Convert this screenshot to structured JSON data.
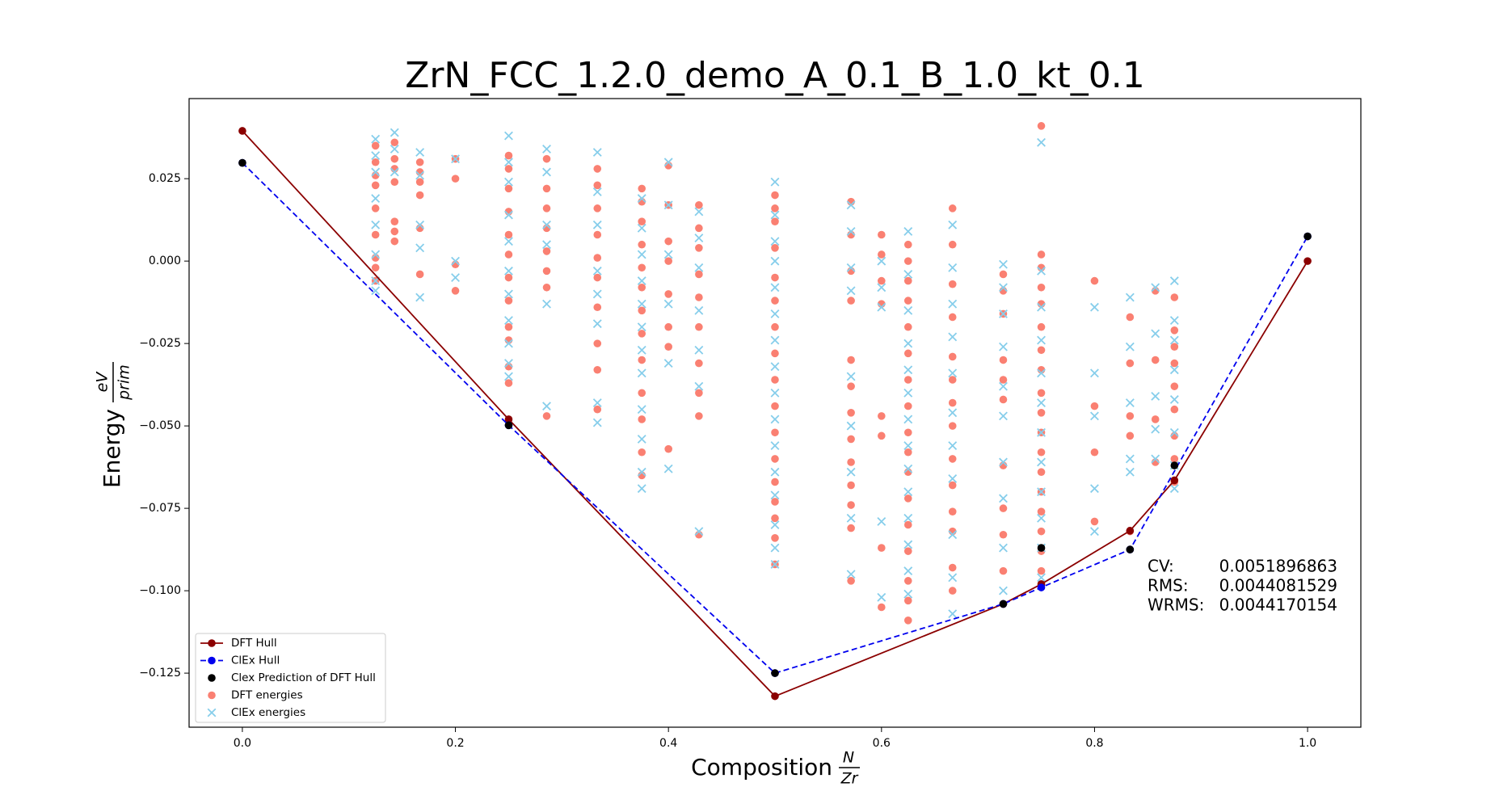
{
  "chart_data": {
    "type": "scatter",
    "title": "ZrN_FCC_1.2.0_demo_A_0.1_B_1.0_kt_0.1",
    "xlabel": {
      "text": "Composition",
      "num": "N",
      "den": "Zr"
    },
    "ylabel": {
      "text": "Energy",
      "num": "eV",
      "den": "prim"
    },
    "xlim": [
      -0.05,
      1.05
    ],
    "ylim": [
      -0.1414,
      0.0493
    ],
    "xticks": [
      {
        "value": 0,
        "label": "0.0"
      },
      0.2,
      0.4,
      0.6,
      0.8,
      {
        "value": 1,
        "label": "1.0"
      }
    ],
    "yticks": [
      {
        "value": -0.125,
        "label": "−0.125"
      },
      {
        "value": -0.1,
        "label": "−0.100"
      },
      {
        "value": -0.075,
        "label": "−0.075"
      },
      {
        "value": -0.05,
        "label": "−0.050"
      },
      {
        "value": -0.025,
        "label": "−0.025"
      },
      {
        "value": 0,
        "label": "0.000"
      },
      0.025
    ],
    "grid": false,
    "legend": "lower left",
    "metrics": [
      {
        "label": "CV:",
        "value": 0.0051896863
      },
      {
        "label": "RMS:",
        "value": 0.0044081529
      },
      {
        "label": "WRMS:",
        "value": 0.0044170154
      }
    ],
    "series": [
      {
        "name": "DFT Hull",
        "color": "#8b0000",
        "marker": "circle",
        "linestyle": "solid",
        "x": [
          0,
          0.25,
          0.5,
          0.7143,
          0.75,
          0.8333,
          0.875,
          1.0
        ],
        "values": [
          0.0395,
          -0.048,
          -0.132,
          -0.104,
          -0.098,
          -0.0818,
          -0.0665,
          0.0
        ]
      },
      {
        "name": "ClEx Hull",
        "color": "#0000ee",
        "marker": "circle",
        "linestyle": "dashed",
        "x": [
          0,
          0.25,
          0.5,
          0.7143,
          0.75,
          0.8333,
          1.0
        ],
        "values": [
          0.0298,
          -0.0498,
          -0.125,
          -0.104,
          -0.099,
          -0.0875,
          0.0075
        ]
      },
      {
        "name": "Clex Prediction of DFT Hull",
        "color": "#000000",
        "marker": "circle",
        "x": [
          0,
          0.25,
          0.5,
          0.7143,
          0.75,
          0.8333,
          0.875,
          1.0
        ],
        "values": [
          0.0298,
          -0.0498,
          -0.125,
          -0.104,
          -0.087,
          -0.0875,
          -0.062,
          0.0075
        ]
      },
      {
        "name": "DFT energies",
        "color": "#fa8072",
        "marker": "circle",
        "x": [
          0.125,
          0.125,
          0.125,
          0.125,
          0.125,
          0.125,
          0.125,
          0.125,
          0.125,
          0.1429,
          0.1429,
          0.1429,
          0.1429,
          0.1429,
          0.1429,
          0.1429,
          0.1667,
          0.1667,
          0.1667,
          0.1667,
          0.1667,
          0.1667,
          0.2,
          0.2,
          0.2,
          0.2,
          0.25,
          0.25,
          0.25,
          0.25,
          0.25,
          0.25,
          0.25,
          0.25,
          0.25,
          0.25,
          0.25,
          0.25,
          0.2857,
          0.2857,
          0.2857,
          0.2857,
          0.2857,
          0.2857,
          0.2857,
          0.2857,
          0.3333,
          0.3333,
          0.3333,
          0.3333,
          0.3333,
          0.3333,
          0.3333,
          0.3333,
          0.3333,
          0.3333,
          0.375,
          0.375,
          0.375,
          0.375,
          0.375,
          0.375,
          0.375,
          0.375,
          0.375,
          0.375,
          0.375,
          0.375,
          0.375,
          0.4,
          0.4,
          0.4,
          0.4,
          0.4,
          0.4,
          0.4,
          0.4,
          0.4286,
          0.4286,
          0.4286,
          0.4286,
          0.4286,
          0.4286,
          0.4286,
          0.4286,
          0.4286,
          0.4286,
          0.5,
          0.5,
          0.5,
          0.5,
          0.5,
          0.5,
          0.5,
          0.5,
          0.5,
          0.5,
          0.5,
          0.5,
          0.5,
          0.5,
          0.5,
          0.5,
          0.5,
          0.5714,
          0.5714,
          0.5714,
          0.5714,
          0.5714,
          0.5714,
          0.5714,
          0.5714,
          0.5714,
          0.5714,
          0.5714,
          0.5714,
          0.5714,
          0.6,
          0.6,
          0.6,
          0.6,
          0.6,
          0.6,
          0.6,
          0.6,
          0.625,
          0.625,
          0.625,
          0.625,
          0.625,
          0.625,
          0.625,
          0.625,
          0.625,
          0.625,
          0.625,
          0.625,
          0.625,
          0.625,
          0.625,
          0.625,
          0.625,
          0.6667,
          0.6667,
          0.6667,
          0.6667,
          0.6667,
          0.6667,
          0.6667,
          0.6667,
          0.6667,
          0.6667,
          0.6667,
          0.6667,
          0.6667,
          0.6667,
          0.7143,
          0.7143,
          0.7143,
          0.7143,
          0.7143,
          0.7143,
          0.7143,
          0.7143,
          0.7143,
          0.7143,
          0.7143,
          0.75,
          0.75,
          0.75,
          0.75,
          0.75,
          0.75,
          0.75,
          0.75,
          0.75,
          0.75,
          0.75,
          0.75,
          0.75,
          0.75,
          0.75,
          0.75,
          0.75,
          0.75,
          0.75,
          0.8,
          0.8,
          0.8,
          0.8,
          0.8333,
          0.8333,
          0.8333,
          0.8333,
          0.8333,
          0.8571,
          0.8571,
          0.8571,
          0.8571,
          0.875,
          0.875,
          0.875,
          0.875,
          0.875,
          0.875,
          0.875,
          0.875,
          0.875
        ],
        "values": [
          0.035,
          0.03,
          0.026,
          0.023,
          0.016,
          0.008,
          0.001,
          -0.002,
          -0.006,
          0.036,
          0.031,
          0.028,
          0.024,
          0.012,
          0.009,
          0.006,
          0.03,
          0.027,
          0.024,
          0.02,
          0.01,
          -0.004,
          0.031,
          0.025,
          -0.001,
          -0.009,
          0.032,
          0.028,
          0.022,
          0.015,
          0.008,
          0.002,
          -0.005,
          -0.012,
          -0.02,
          -0.024,
          -0.032,
          -0.037,
          0.031,
          0.022,
          0.016,
          0.01,
          0.003,
          -0.003,
          -0.008,
          -0.047,
          0.028,
          0.023,
          0.016,
          0.008,
          0.001,
          -0.005,
          -0.014,
          -0.025,
          -0.033,
          -0.045,
          0.022,
          0.018,
          0.012,
          0.005,
          -0.002,
          -0.008,
          -0.015,
          -0.022,
          -0.03,
          -0.04,
          -0.048,
          -0.058,
          -0.065,
          0.029,
          0.017,
          0.006,
          0.0,
          -0.01,
          -0.02,
          -0.026,
          -0.057,
          0.017,
          0.01,
          0.004,
          -0.004,
          -0.011,
          -0.02,
          -0.031,
          -0.04,
          -0.047,
          -0.083,
          0.02,
          0.016,
          0.012,
          0.004,
          -0.005,
          -0.012,
          -0.02,
          -0.028,
          -0.036,
          -0.044,
          -0.052,
          -0.06,
          -0.067,
          -0.073,
          -0.078,
          -0.084,
          -0.092,
          0.018,
          0.008,
          -0.003,
          -0.012,
          -0.03,
          -0.038,
          -0.046,
          -0.054,
          -0.061,
          -0.068,
          -0.074,
          -0.081,
          -0.097,
          0.008,
          0.002,
          -0.006,
          -0.013,
          -0.047,
          -0.053,
          -0.087,
          -0.105,
          0.005,
          0.0,
          -0.006,
          -0.012,
          -0.02,
          -0.028,
          -0.036,
          -0.044,
          -0.052,
          -0.058,
          -0.064,
          -0.072,
          -0.08,
          -0.088,
          -0.097,
          -0.103,
          -0.109,
          0.016,
          0.005,
          -0.007,
          -0.017,
          -0.029,
          -0.036,
          -0.043,
          -0.05,
          -0.06,
          -0.068,
          -0.076,
          -0.082,
          -0.093,
          -0.1,
          -0.004,
          -0.009,
          -0.016,
          -0.03,
          -0.036,
          -0.042,
          -0.062,
          -0.075,
          -0.083,
          -0.094,
          -0.104,
          0.041,
          0.002,
          -0.002,
          -0.008,
          -0.013,
          -0.02,
          -0.027,
          -0.033,
          -0.04,
          -0.046,
          -0.052,
          -0.058,
          -0.064,
          -0.07,
          -0.076,
          -0.082,
          -0.088,
          -0.094,
          -0.098,
          -0.006,
          -0.044,
          -0.058,
          -0.079,
          -0.017,
          -0.031,
          -0.047,
          -0.053,
          -0.082,
          -0.009,
          -0.03,
          -0.048,
          -0.061,
          -0.011,
          -0.021,
          -0.026,
          -0.031,
          -0.038,
          -0.045,
          -0.053,
          -0.06,
          -0.067
        ]
      },
      {
        "name": "ClEx energies",
        "color": "#87ceeb",
        "marker": "x",
        "x": [
          0.125,
          0.125,
          0.125,
          0.125,
          0.125,
          0.125,
          0.125,
          0.125,
          0.1429,
          0.1429,
          0.1429,
          0.1667,
          0.1667,
          0.1667,
          0.1667,
          0.1667,
          0.2,
          0.2,
          0.2,
          0.25,
          0.25,
          0.25,
          0.25,
          0.25,
          0.25,
          0.25,
          0.25,
          0.25,
          0.25,
          0.25,
          0.2857,
          0.2857,
          0.2857,
          0.2857,
          0.2857,
          0.2857,
          0.3333,
          0.3333,
          0.3333,
          0.3333,
          0.3333,
          0.3333,
          0.3333,
          0.3333,
          0.375,
          0.375,
          0.375,
          0.375,
          0.375,
          0.375,
          0.375,
          0.375,
          0.375,
          0.375,
          0.375,
          0.375,
          0.4,
          0.4,
          0.4,
          0.4,
          0.4,
          0.4,
          0.4286,
          0.4286,
          0.4286,
          0.4286,
          0.4286,
          0.4286,
          0.4286,
          0.5,
          0.5,
          0.5,
          0.5,
          0.5,
          0.5,
          0.5,
          0.5,
          0.5,
          0.5,
          0.5,
          0.5,
          0.5,
          0.5,
          0.5,
          0.5,
          0.5714,
          0.5714,
          0.5714,
          0.5714,
          0.5714,
          0.5714,
          0.5714,
          0.5714,
          0.5714,
          0.6,
          0.6,
          0.6,
          0.6,
          0.6,
          0.625,
          0.625,
          0.625,
          0.625,
          0.625,
          0.625,
          0.625,
          0.625,
          0.625,
          0.625,
          0.625,
          0.625,
          0.625,
          0.625,
          0.6667,
          0.6667,
          0.6667,
          0.6667,
          0.6667,
          0.6667,
          0.6667,
          0.6667,
          0.6667,
          0.6667,
          0.6667,
          0.7143,
          0.7143,
          0.7143,
          0.7143,
          0.7143,
          0.7143,
          0.7143,
          0.7143,
          0.7143,
          0.7143,
          0.75,
          0.75,
          0.75,
          0.75,
          0.75,
          0.75,
          0.75,
          0.75,
          0.75,
          0.75,
          0.75,
          0.75,
          0.8,
          0.8,
          0.8,
          0.8,
          0.8,
          0.8333,
          0.8333,
          0.8333,
          0.8333,
          0.8333,
          0.8571,
          0.8571,
          0.8571,
          0.8571,
          0.8571,
          0.875,
          0.875,
          0.875,
          0.875,
          0.875,
          0.875,
          0.875,
          0.875
        ],
        "values": [
          0.037,
          0.032,
          0.027,
          0.019,
          0.011,
          0.002,
          -0.006,
          -0.009,
          0.039,
          0.034,
          0.027,
          0.033,
          0.026,
          0.011,
          0.004,
          -0.011,
          0.031,
          0.0,
          -0.005,
          0.038,
          0.03,
          0.024,
          0.014,
          0.006,
          -0.003,
          -0.01,
          -0.018,
          -0.025,
          -0.031,
          -0.035,
          0.034,
          0.027,
          0.011,
          0.005,
          -0.013,
          -0.044,
          0.033,
          0.021,
          0.011,
          -0.003,
          -0.01,
          -0.019,
          -0.043,
          -0.049,
          0.019,
          0.01,
          0.002,
          -0.006,
          -0.013,
          -0.02,
          -0.027,
          -0.034,
          -0.045,
          -0.054,
          -0.064,
          -0.069,
          0.03,
          0.017,
          0.002,
          -0.013,
          -0.031,
          -0.063,
          0.015,
          0.007,
          -0.002,
          -0.015,
          -0.027,
          -0.038,
          -0.082,
          0.024,
          0.014,
          0.006,
          0.0,
          -0.008,
          -0.016,
          -0.024,
          -0.032,
          -0.04,
          -0.048,
          -0.056,
          -0.064,
          -0.071,
          -0.08,
          -0.087,
          -0.092,
          0.017,
          0.009,
          -0.002,
          -0.009,
          -0.035,
          -0.05,
          -0.064,
          -0.078,
          -0.095,
          0.0,
          -0.008,
          -0.014,
          -0.079,
          -0.102,
          0.009,
          -0.004,
          -0.015,
          -0.025,
          -0.033,
          -0.04,
          -0.048,
          -0.056,
          -0.063,
          -0.07,
          -0.078,
          -0.086,
          -0.094,
          -0.101,
          0.011,
          -0.002,
          -0.013,
          -0.023,
          -0.034,
          -0.046,
          -0.056,
          -0.066,
          -0.083,
          -0.096,
          -0.107,
          -0.001,
          -0.008,
          -0.016,
          -0.026,
          -0.038,
          -0.047,
          -0.061,
          -0.072,
          -0.087,
          -0.1,
          0.036,
          -0.003,
          -0.014,
          -0.024,
          -0.034,
          -0.043,
          -0.052,
          -0.061,
          -0.07,
          -0.078,
          -0.087,
          -0.096,
          -0.014,
          -0.034,
          -0.047,
          -0.069,
          -0.082,
          -0.011,
          -0.026,
          -0.043,
          -0.06,
          -0.064,
          -0.008,
          -0.022,
          -0.041,
          -0.051,
          -0.06,
          -0.006,
          -0.018,
          -0.024,
          -0.033,
          -0.042,
          -0.052,
          -0.062,
          -0.069
        ]
      }
    ]
  }
}
